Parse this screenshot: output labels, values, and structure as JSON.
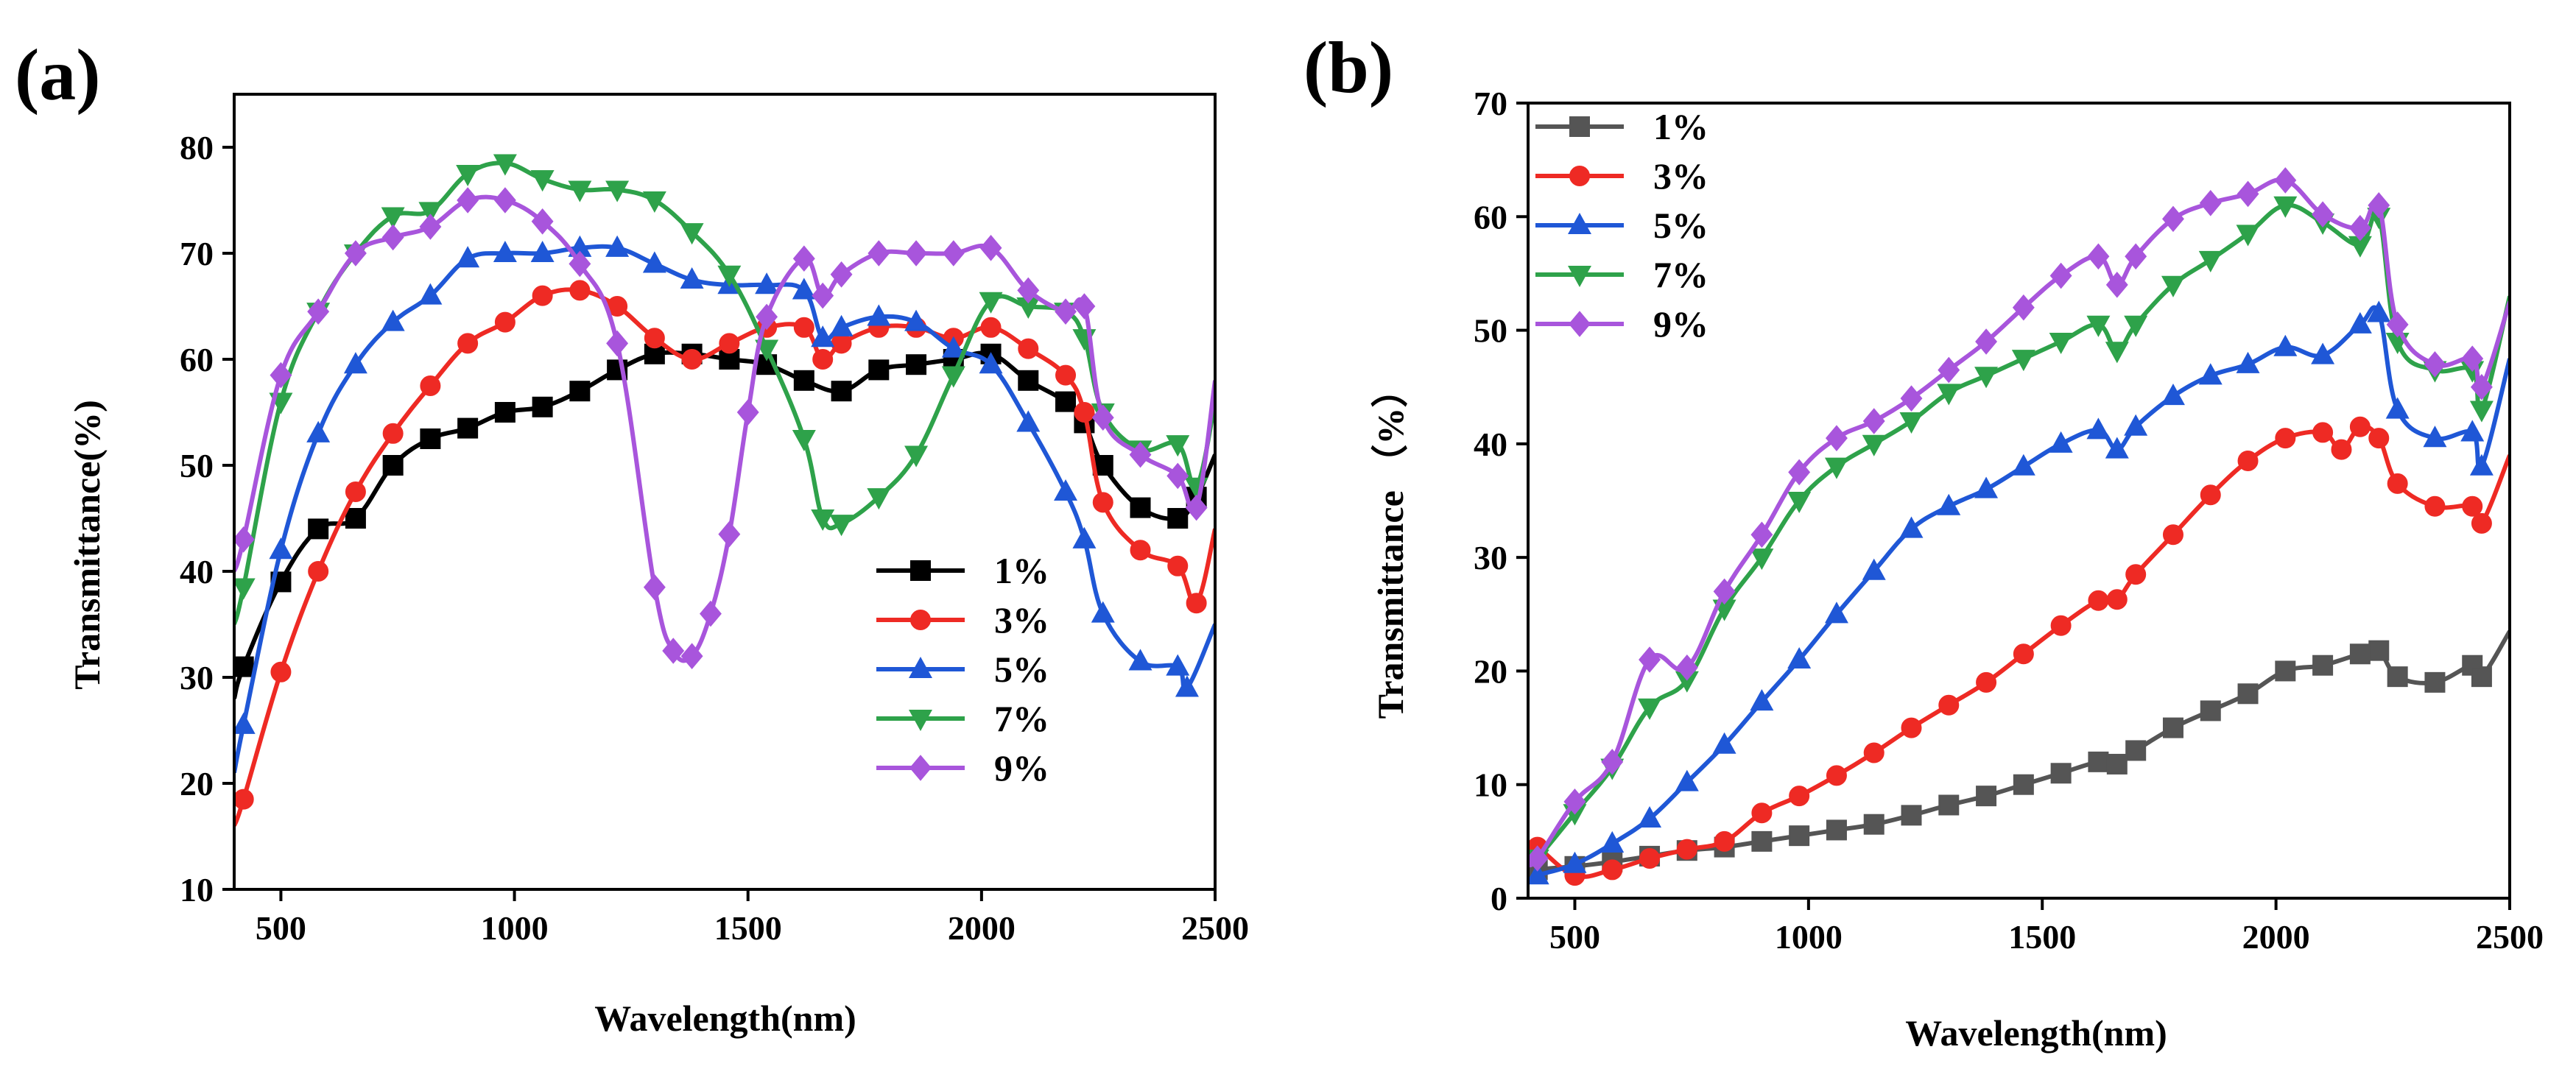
{
  "chart_data": [
    {
      "type": "line",
      "panel_label": "(a)",
      "xlabel": "Wavelength(nm)",
      "ylabel": "Transmittance(%)",
      "xlim": [
        400,
        2500
      ],
      "ylim": [
        10,
        85
      ],
      "xticks": [
        500,
        1000,
        1500,
        2000,
        2500
      ],
      "yticks": [
        10,
        20,
        30,
        40,
        50,
        60,
        70,
        80
      ],
      "legend_position": "middle-right",
      "series": [
        {
          "name": "1%",
          "color": "#000000",
          "marker": "square",
          "x": [
            400,
            420,
            500,
            580,
            660,
            740,
            820,
            900,
            980,
            1060,
            1140,
            1220,
            1300,
            1380,
            1460,
            1540,
            1620,
            1700,
            1780,
            1860,
            1940,
            2020,
            2100,
            2180,
            2220,
            2260,
            2340,
            2420,
            2460,
            2500
          ],
          "y": [
            28,
            31,
            39,
            44,
            45,
            50,
            52.5,
            53.5,
            55,
            55.5,
            57,
            59,
            60.5,
            60.5,
            60,
            59.5,
            58,
            57,
            59,
            59.5,
            60,
            60.5,
            58,
            56,
            54,
            50,
            46,
            45,
            47,
            51
          ]
        },
        {
          "name": "3%",
          "color": "#ee2a24",
          "marker": "circle",
          "x": [
            400,
            420,
            500,
            580,
            660,
            740,
            820,
            900,
            980,
            1060,
            1140,
            1220,
            1300,
            1380,
            1460,
            1540,
            1620,
            1660,
            1700,
            1780,
            1860,
            1940,
            2020,
            2100,
            2180,
            2220,
            2260,
            2340,
            2420,
            2460,
            2500
          ],
          "y": [
            16,
            18.5,
            30.5,
            40,
            47.5,
            53,
            57.5,
            61.5,
            63.5,
            66,
            66.5,
            65,
            62,
            60,
            61.5,
            63,
            63,
            60,
            61.5,
            63,
            63,
            62,
            63,
            61,
            58.5,
            55,
            46.5,
            42,
            40.5,
            37,
            44
          ]
        },
        {
          "name": "5%",
          "color": "#1f57d6",
          "marker": "triangle-up",
          "x": [
            400,
            420,
            500,
            580,
            660,
            740,
            820,
            900,
            980,
            1060,
            1140,
            1220,
            1300,
            1380,
            1460,
            1540,
            1620,
            1660,
            1700,
            1780,
            1860,
            1940,
            2020,
            2100,
            2180,
            2220,
            2260,
            2340,
            2420,
            2440,
            2500
          ],
          "y": [
            21,
            25.5,
            42,
            53,
            59.5,
            63.5,
            66,
            69.5,
            70,
            70,
            70.5,
            70.5,
            69,
            67.5,
            67,
            67,
            66.5,
            62,
            63,
            64,
            63.5,
            61,
            59.5,
            54,
            47.5,
            43,
            36,
            31.5,
            31,
            29,
            35
          ]
        },
        {
          "name": "7%",
          "color": "#2ea24a",
          "marker": "triangle-down",
          "x": [
            400,
            420,
            500,
            580,
            660,
            740,
            820,
            900,
            980,
            1060,
            1140,
            1220,
            1300,
            1380,
            1460,
            1540,
            1620,
            1660,
            1700,
            1780,
            1860,
            1940,
            2020,
            2100,
            2180,
            2220,
            2260,
            2340,
            2420,
            2460,
            2500
          ],
          "y": [
            35,
            38.5,
            56,
            64.5,
            70,
            73.5,
            74,
            77.5,
            78.5,
            77,
            76,
            76,
            75,
            72,
            68,
            61,
            52.5,
            45,
            44.5,
            47,
            51,
            58.5,
            65.5,
            65,
            64.5,
            62,
            55,
            51.5,
            52,
            48,
            56
          ]
        },
        {
          "name": "9%",
          "color": "#a855dc",
          "marker": "diamond",
          "x": [
            400,
            420,
            500,
            580,
            660,
            740,
            820,
            900,
            980,
            1060,
            1140,
            1220,
            1300,
            1340,
            1380,
            1420,
            1460,
            1500,
            1540,
            1620,
            1660,
            1700,
            1780,
            1860,
            1940,
            2020,
            2100,
            2180,
            2220,
            2260,
            2340,
            2420,
            2460,
            2500
          ],
          "y": [
            40,
            43,
            58.5,
            64.5,
            70,
            71.5,
            72.5,
            75,
            75,
            73,
            69,
            61.5,
            38.5,
            32.5,
            32,
            36,
            43.5,
            55,
            64,
            69.5,
            66,
            68,
            70,
            70,
            70,
            70.5,
            66.5,
            64.5,
            65,
            54.5,
            51,
            49,
            46,
            58
          ]
        }
      ]
    },
    {
      "type": "line",
      "panel_label": "(b)",
      "xlabel": "Wavelength(nm)",
      "ylabel": "Transmittance （%）",
      "xlim": [
        400,
        2500
      ],
      "ylim": [
        0,
        70
      ],
      "xticks": [
        500,
        1000,
        1500,
        2000,
        2500
      ],
      "yticks": [
        0,
        10,
        20,
        30,
        40,
        50,
        60,
        70
      ],
      "legend_position": "top-left",
      "series": [
        {
          "name": "1%",
          "color": "#555555",
          "marker": "square",
          "x": [
            400,
            420,
            500,
            580,
            660,
            740,
            820,
            900,
            980,
            1060,
            1140,
            1220,
            1300,
            1380,
            1460,
            1540,
            1620,
            1660,
            1700,
            1780,
            1860,
            1940,
            2020,
            2100,
            2180,
            2220,
            2260,
            2340,
            2420,
            2440,
            2500
          ],
          "y": [
            2,
            2.5,
            2.8,
            3.2,
            3.7,
            4.2,
            4.5,
            5,
            5.5,
            6,
            6.5,
            7.3,
            8.2,
            9,
            10,
            11,
            12,
            11.8,
            13,
            15,
            16.5,
            18,
            20,
            20.5,
            21.5,
            21.8,
            19.5,
            19,
            20.5,
            19.5,
            23.5
          ]
        },
        {
          "name": "3%",
          "color": "#ee2a24",
          "marker": "circle",
          "x": [
            400,
            420,
            500,
            580,
            660,
            740,
            820,
            900,
            980,
            1060,
            1140,
            1220,
            1300,
            1380,
            1460,
            1540,
            1620,
            1660,
            1700,
            1780,
            1860,
            1940,
            2020,
            2100,
            2140,
            2180,
            2220,
            2260,
            2340,
            2420,
            2440,
            2500
          ],
          "y": [
            4.5,
            4.5,
            2,
            2.5,
            3.5,
            4.3,
            5,
            7.5,
            9,
            10.8,
            12.8,
            15,
            17,
            19,
            21.5,
            24,
            26.2,
            26.3,
            28.5,
            32,
            35.5,
            38.5,
            40.5,
            41,
            39.5,
            41.5,
            40.5,
            36.5,
            34.5,
            34.5,
            33,
            39
          ]
        },
        {
          "name": "5%",
          "color": "#1f57d6",
          "marker": "triangle-up",
          "x": [
            400,
            420,
            500,
            580,
            660,
            740,
            820,
            900,
            980,
            1060,
            1140,
            1220,
            1300,
            1380,
            1460,
            1540,
            1620,
            1660,
            1700,
            1780,
            1860,
            1940,
            2020,
            2100,
            2180,
            2220,
            2260,
            2340,
            2420,
            2440,
            2500
          ],
          "y": [
            1.5,
            2,
            3,
            4.8,
            7,
            10.2,
            13.5,
            17.3,
            21,
            25,
            28.8,
            32.5,
            34.5,
            36,
            38,
            40,
            41.2,
            39.5,
            41.5,
            44.2,
            46,
            47,
            48.5,
            47.8,
            50.5,
            51.5,
            43,
            40.5,
            41,
            38,
            47.5
          ]
        },
        {
          "name": "7%",
          "color": "#2ea24a",
          "marker": "triangle-down",
          "x": [
            400,
            420,
            500,
            580,
            660,
            740,
            820,
            900,
            980,
            1060,
            1140,
            1220,
            1300,
            1380,
            1460,
            1540,
            1620,
            1660,
            1700,
            1780,
            1860,
            1940,
            2020,
            2100,
            2180,
            2220,
            2260,
            2340,
            2420,
            2440,
            2500
          ],
          "y": [
            3,
            3.5,
            7.5,
            11.5,
            16.8,
            19.2,
            25.5,
            30,
            35,
            38,
            40,
            42,
            44.5,
            46,
            47.5,
            49,
            50.5,
            48.2,
            50.5,
            54,
            56.2,
            58.5,
            61,
            59.5,
            57.5,
            60,
            49,
            46.5,
            46.5,
            43,
            53
          ]
        },
        {
          "name": "9%",
          "color": "#a855dc",
          "marker": "diamond",
          "x": [
            400,
            420,
            500,
            580,
            660,
            740,
            820,
            900,
            980,
            1060,
            1140,
            1220,
            1300,
            1380,
            1460,
            1540,
            1620,
            1660,
            1700,
            1780,
            1860,
            1940,
            2020,
            2100,
            2180,
            2220,
            2260,
            2340,
            2420,
            2440,
            2500
          ],
          "y": [
            3,
            3.5,
            8.5,
            12,
            21,
            20.3,
            27,
            32,
            37.5,
            40.5,
            42,
            44,
            46.5,
            49,
            52,
            54.8,
            56.5,
            54,
            56.5,
            59.8,
            61.2,
            62,
            63.2,
            60.2,
            59,
            61,
            50.5,
            47,
            47.5,
            45,
            52.5
          ]
        }
      ]
    }
  ]
}
